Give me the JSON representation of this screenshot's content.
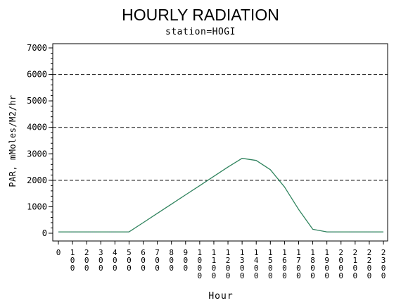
{
  "colors": {
    "line": "#2e8b57",
    "line_overlay": "#4a3aa8",
    "axis": "#000000",
    "grid": "#000000",
    "background": "#ffffff"
  },
  "chart_data": {
    "type": "line",
    "title": "HOURLY RADIATION",
    "subtitle": "station=HOGI",
    "xlabel": "Hour",
    "ylabel": "PAR, mMoles/M2/hr",
    "ylim": [
      0,
      7000
    ],
    "yticks": [
      0,
      1000,
      2000,
      3000,
      4000,
      5000,
      6000,
      7000
    ],
    "ytick_labels": [
      "0",
      "1000",
      "2000",
      "3000",
      "4000",
      "5000",
      "6000",
      "7000"
    ],
    "gridlines_y": [
      2000,
      4000,
      6000
    ],
    "grid_style": "dashed",
    "x_tick_labels": [
      "0",
      "100",
      "200",
      "300",
      "400",
      "500",
      "600",
      "700",
      "800",
      "900",
      "1000",
      "1100",
      "1200",
      "1300",
      "1400",
      "1500",
      "1600",
      "1700",
      "1800",
      "1900",
      "2000",
      "2100",
      "2200",
      "2300"
    ],
    "x": [
      0,
      1,
      2,
      3,
      4,
      5,
      6,
      7,
      8,
      9,
      10,
      11,
      12,
      13,
      14,
      15,
      16,
      17,
      18,
      19,
      20,
      21,
      22,
      23
    ],
    "series": [
      {
        "values": [
          50,
          50,
          50,
          50,
          50,
          50,
          400,
          750,
          1100,
          1450,
          1800,
          2150,
          2500,
          2830,
          2750,
          2400,
          1750,
          900,
          150,
          50,
          50,
          50,
          50,
          50
        ]
      }
    ]
  }
}
